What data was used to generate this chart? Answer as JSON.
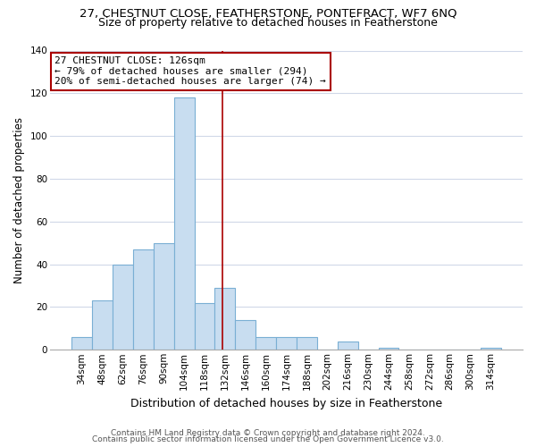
{
  "title_line1": "27, CHESTNUT CLOSE, FEATHERSTONE, PONTEFRACT, WF7 6NQ",
  "title_line2": "Size of property relative to detached houses in Featherstone",
  "xlabel": "Distribution of detached houses by size in Featherstone",
  "ylabel": "Number of detached properties",
  "bar_labels": [
    "34sqm",
    "48sqm",
    "62sqm",
    "76sqm",
    "90sqm",
    "104sqm",
    "118sqm",
    "132sqm",
    "146sqm",
    "160sqm",
    "174sqm",
    "188sqm",
    "202sqm",
    "216sqm",
    "230sqm",
    "244sqm",
    "258sqm",
    "272sqm",
    "286sqm",
    "300sqm",
    "314sqm"
  ],
  "bar_values": [
    6,
    23,
    40,
    47,
    50,
    118,
    22,
    29,
    14,
    6,
    6,
    6,
    0,
    4,
    0,
    1,
    0,
    0,
    0,
    0,
    1
  ],
  "bar_color": "#c8ddf0",
  "bar_edge_color": "#7aafd4",
  "annotation_title": "27 CHESTNUT CLOSE: 126sqm",
  "annotation_line1": "← 79% of detached houses are smaller (294)",
  "annotation_line2": "20% of semi-detached houses are larger (74) →",
  "annotation_box_facecolor": "#ffffff",
  "annotation_box_edgecolor": "#aa0000",
  "property_line_x": 6.857,
  "property_line_color": "#aa0000",
  "ylim": [
    0,
    140
  ],
  "yticks": [
    0,
    20,
    40,
    60,
    80,
    100,
    120,
    140
  ],
  "footer_line1": "Contains HM Land Registry data © Crown copyright and database right 2024.",
  "footer_line2": "Contains public sector information licensed under the Open Government Licence v3.0.",
  "background_color": "#ffffff",
  "grid_color": "#d0d8e8",
  "title1_fontsize": 9.5,
  "title2_fontsize": 9,
  "ylabel_fontsize": 8.5,
  "xlabel_fontsize": 9,
  "tick_fontsize": 7.5,
  "footer_fontsize": 6.5
}
